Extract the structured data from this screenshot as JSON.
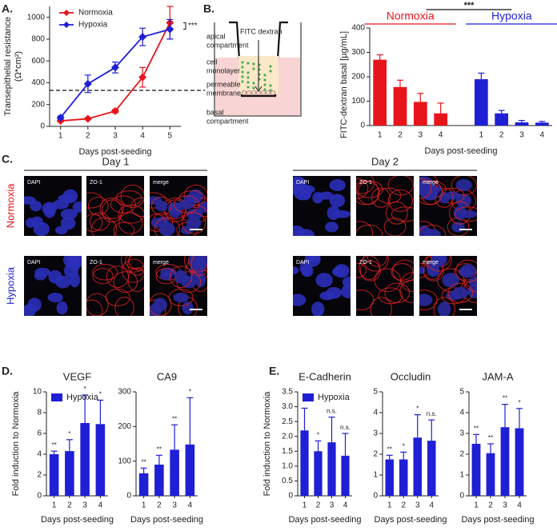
{
  "panels": [
    "A.",
    "B.",
    "C.",
    "D.",
    "E."
  ],
  "diagram": {
    "labels": [
      [
        "apical",
        "compartment"
      ],
      [
        "FITC dextran"
      ],
      [
        "cell",
        "monolayer"
      ],
      [
        "permeable",
        "membrane"
      ],
      [
        "basal",
        "compartment"
      ]
    ]
  },
  "microscopy": {
    "columns": [
      "Day 1",
      "Day 2"
    ],
    "rows": [
      {
        "label": "Normoxia",
        "color": "#e8141b"
      },
      {
        "label": "Hypoxia",
        "color": "#1f1fd6"
      }
    ],
    "channels": [
      "DAPI",
      "ZO-1",
      "merge"
    ]
  },
  "chart_data": [
    {
      "type": "line",
      "ylabel": [
        "Transepithelial resistance",
        "(Ω*cm²)"
      ],
      "xlabel": "Days post-seeding",
      "x": [
        1,
        2,
        3,
        4,
        5
      ],
      "xlim": [
        0.6,
        5.4
      ],
      "xticks": [
        1,
        2,
        3,
        4,
        5
      ],
      "ylim": [
        0,
        1100
      ],
      "yticks": [
        0,
        200,
        400,
        600,
        800,
        1000
      ],
      "legend": "upper left",
      "series": [
        {
          "name": "Normoxia",
          "color": "#e8141b",
          "values": [
            50,
            70,
            140,
            450,
            950
          ],
          "errors": [
            10,
            10,
            15,
            90,
            150
          ]
        },
        {
          "name": "Hypoxia",
          "color": "#1f1fd6",
          "values": [
            80,
            390,
            540,
            820,
            890
          ],
          "errors": [
            15,
            80,
            50,
            80,
            90
          ]
        }
      ],
      "reference_line": 330,
      "annotations": [
        "***"
      ]
    },
    {
      "type": "grouped_bar",
      "ylabel": "FITC-dextran basal [µg/mL]",
      "xlabel": "Days post-seeding",
      "categories": [
        "1",
        "2",
        "3",
        "4"
      ],
      "ylim": [
        0,
        400
      ],
      "yticks": [
        0,
        100,
        200,
        300,
        400
      ],
      "series": [
        {
          "name": "Normoxia",
          "color": "#e8141b",
          "values": [
            270,
            158,
            97,
            50
          ],
          "errors": [
            20,
            28,
            35,
            42
          ]
        },
        {
          "name": "Hypoxia",
          "color": "#1f1fd6",
          "values": [
            190,
            50,
            13,
            12
          ],
          "errors": [
            25,
            12,
            8,
            5
          ]
        }
      ],
      "annotations": [
        "***"
      ]
    },
    {
      "type": "bar",
      "title": "VEGF",
      "ylabel": "Fold induction to Normoxia",
      "xlabel": "Days post-seeding",
      "categories": [
        "1",
        "2",
        "3",
        "4"
      ],
      "ylim": [
        0,
        10
      ],
      "yticks": [
        0,
        2,
        4,
        6,
        8,
        10
      ],
      "series": [
        {
          "name": "Hypoxia",
          "color": "#1f1fd6",
          "values": [
            4.0,
            4.3,
            7.0,
            6.9
          ],
          "errors": [
            0.3,
            1.1,
            2.7,
            2.3
          ]
        }
      ],
      "annotations": [
        "**",
        "*",
        "*",
        "*"
      ]
    },
    {
      "type": "bar",
      "title": "CA9",
      "xlabel": "Days post-seeding",
      "categories": [
        "1",
        "2",
        "3",
        "4"
      ],
      "ylim": [
        0,
        300
      ],
      "yticks": [
        0,
        100,
        200,
        300
      ],
      "series": [
        {
          "color": "#1f1fd6",
          "values": [
            65,
            90,
            133,
            148
          ],
          "errors": [
            15,
            27,
            72,
            135
          ]
        }
      ],
      "annotations": [
        "**",
        "**",
        "**",
        "*"
      ]
    },
    {
      "type": "bar",
      "title": "E-Cadherin",
      "ylabel": "Fold induction to Normoxia",
      "xlabel": "Days post-seeding",
      "categories": [
        "1",
        "2",
        "3",
        "4"
      ],
      "ylim": [
        0,
        3.5
      ],
      "yticks": [
        0,
        0.5,
        {
          "value": 1,
          "label": "1.0"
        },
        1.5,
        {
          "value": 2,
          "label": "2.0"
        },
        2.5,
        {
          "value": 3,
          "label": "3.0"
        },
        3.5
      ],
      "series": [
        {
          "name": "Hypoxia",
          "color": "#1f1fd6",
          "values": [
            2.2,
            1.5,
            1.8,
            1.35
          ],
          "errors": [
            0.75,
            0.35,
            0.85,
            0.75
          ]
        }
      ],
      "annotations": [
        "*",
        "*",
        "n.s.",
        "n.s."
      ]
    },
    {
      "type": "bar",
      "title": "Occludin",
      "xlabel": "Days post-seeding",
      "categories": [
        "1",
        "2",
        "3",
        "4"
      ],
      "ylim": [
        0,
        5
      ],
      "yticks": [
        0,
        1,
        2,
        3,
        4,
        5
      ],
      "series": [
        {
          "color": "#1f1fd6",
          "values": [
            1.75,
            1.75,
            2.8,
            2.65
          ],
          "errors": [
            0.2,
            0.35,
            1.1,
            1.0
          ]
        }
      ],
      "annotations": [
        "**",
        "*",
        "*",
        "n.s."
      ]
    },
    {
      "type": "bar",
      "title": "JAM-A",
      "xlabel": "Days post-seeding",
      "categories": [
        "1",
        "2",
        "3",
        "4"
      ],
      "ylim": [
        0,
        5
      ],
      "yticks": [
        0,
        1,
        2,
        3,
        4,
        5
      ],
      "series": [
        {
          "color": "#1f1fd6",
          "values": [
            2.5,
            2.05,
            3.3,
            3.25
          ],
          "errors": [
            0.45,
            0.45,
            1.1,
            0.95
          ]
        }
      ],
      "annotations": [
        "**",
        "**",
        "**",
        "*"
      ]
    }
  ]
}
